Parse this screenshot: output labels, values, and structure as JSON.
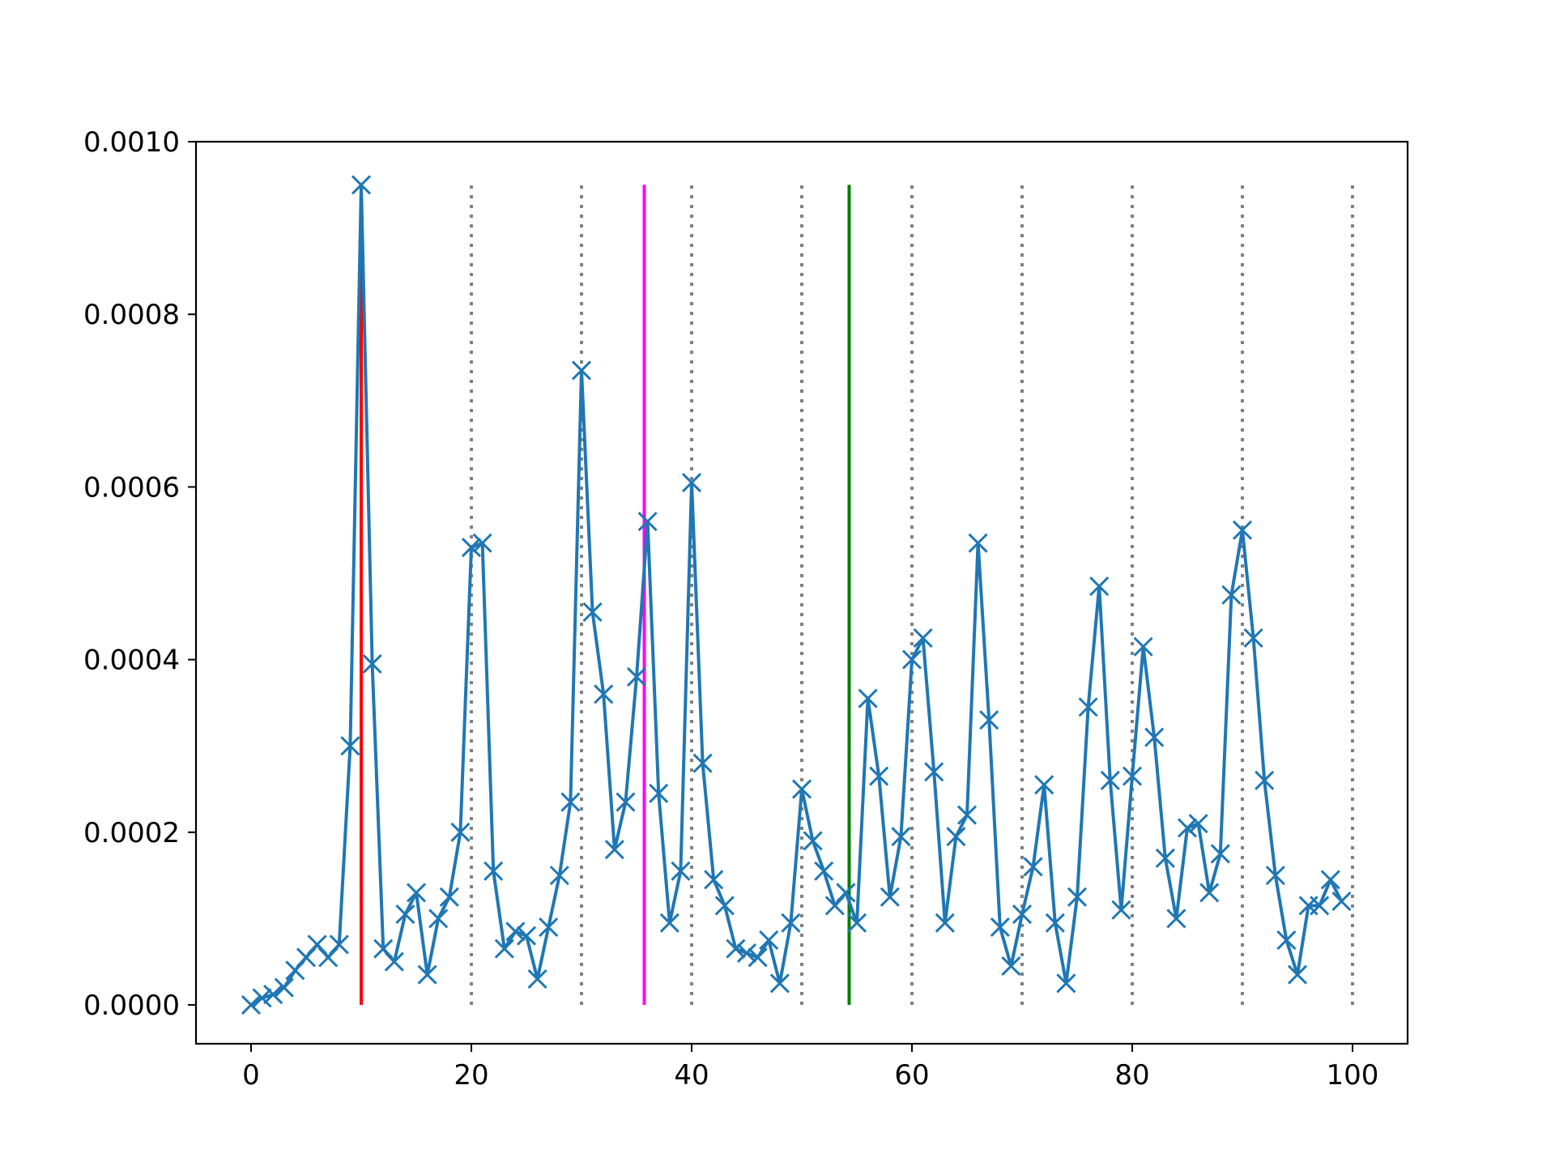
{
  "chart_data": {
    "type": "line",
    "title": "",
    "xlabel": "",
    "ylabel": "",
    "xlim": [
      -5,
      105
    ],
    "ylim": [
      -4.5e-05,
      0.001
    ],
    "grid": false,
    "legend": "none",
    "x_ticks": [
      0,
      20,
      40,
      60,
      80,
      100
    ],
    "x_tick_labels": [
      "0",
      "20",
      "40",
      "60",
      "80",
      "100"
    ],
    "y_ticks": [
      0,
      0.0002,
      0.0004,
      0.0006,
      0.0008,
      0.001
    ],
    "y_tick_labels": [
      "0.0000",
      "0.0002",
      "0.0004",
      "0.0006",
      "0.0008",
      "0.0010"
    ],
    "series": [
      {
        "color": "#1f77b4",
        "marker": "x",
        "x": [
          0,
          1,
          2,
          3,
          4,
          5,
          6,
          7,
          8,
          9,
          10,
          11,
          12,
          13,
          14,
          15,
          16,
          17,
          18,
          19,
          20,
          21,
          22,
          23,
          24,
          25,
          26,
          27,
          28,
          29,
          30,
          31,
          32,
          33,
          34,
          35,
          36,
          37,
          38,
          39,
          40,
          41,
          42,
          43,
          44,
          45,
          46,
          47,
          48,
          49,
          50,
          51,
          52,
          53,
          54,
          55,
          56,
          57,
          58,
          59,
          60,
          61,
          62,
          63,
          64,
          65,
          66,
          67,
          68,
          69,
          70,
          71,
          72,
          73,
          74,
          75,
          76,
          77,
          78,
          79,
          80,
          81,
          82,
          83,
          84,
          85,
          86,
          87,
          88,
          89,
          90,
          91,
          92,
          93,
          94,
          95,
          96,
          97,
          98,
          99
        ],
        "y": [
          0.0,
          8e-06,
          1.2e-05,
          2e-05,
          4e-05,
          5.5e-05,
          7e-05,
          5.5e-05,
          7e-05,
          0.0003,
          0.00095,
          0.000395,
          6.5e-05,
          5e-05,
          0.000105,
          0.00013,
          3.5e-05,
          0.0001,
          0.000125,
          0.0002,
          0.00053,
          0.000535,
          0.000155,
          6.5e-05,
          8.5e-05,
          8e-05,
          3e-05,
          9e-05,
          0.00015,
          0.000235,
          0.000735,
          0.000455,
          0.00036,
          0.00018,
          0.000235,
          0.00038,
          0.00056,
          0.000245,
          9.5e-05,
          0.000155,
          0.000605,
          0.00028,
          0.000145,
          0.000115,
          6.5e-05,
          6e-05,
          5.5e-05,
          7.5e-05,
          2.5e-05,
          9.5e-05,
          0.00025,
          0.00019,
          0.000155,
          0.000115,
          0.00013,
          9.5e-05,
          0.000355,
          0.000265,
          0.000125,
          0.000195,
          0.0004,
          0.000425,
          0.00027,
          9.5e-05,
          0.000195,
          0.00022,
          0.000535,
          0.00033,
          9e-05,
          4.5e-05,
          0.000105,
          0.00016,
          0.000255,
          9.5e-05,
          2.5e-05,
          0.000125,
          0.000345,
          0.000485,
          0.00026,
          0.00011,
          0.000265,
          0.000415,
          0.00031,
          0.00017,
          0.0001,
          0.000205,
          0.00021,
          0.00013,
          0.000175,
          0.000475,
          0.00055,
          0.000425,
          0.00026,
          0.00015,
          7.5e-05,
          3.5e-05,
          0.000115,
          0.000115,
          0.000145,
          0.00012
        ]
      }
    ],
    "dotted_vlines": {
      "x": [
        20,
        30,
        40,
        50,
        60,
        70,
        80,
        90,
        100
      ],
      "ymin": 0.0,
      "ymax": 0.00095,
      "color": "#808080",
      "style": "dotted"
    },
    "solid_vlines": [
      {
        "x": 10,
        "ymin": 0.0,
        "ymax": 0.00095,
        "color": "#ff0000"
      },
      {
        "x": 35.7,
        "ymin": 0.0,
        "ymax": 0.00095,
        "color": "#ff00ff"
      },
      {
        "x": 54.3,
        "ymin": 0.0,
        "ymax": 0.00095,
        "color": "#008000"
      }
    ]
  }
}
